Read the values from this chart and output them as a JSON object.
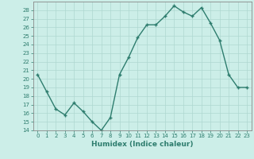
{
  "x": [
    0,
    1,
    2,
    3,
    4,
    5,
    6,
    7,
    8,
    9,
    10,
    11,
    12,
    13,
    14,
    15,
    16,
    17,
    18,
    19,
    20,
    21,
    22,
    23
  ],
  "y": [
    20.5,
    18.5,
    16.5,
    15.8,
    17.2,
    16.2,
    15.0,
    14.0,
    15.5,
    20.5,
    22.5,
    24.8,
    26.3,
    26.3,
    27.3,
    28.5,
    27.8,
    27.3,
    28.3,
    26.5,
    24.5,
    20.5,
    19.0,
    19.0
  ],
  "line_color": "#2e7d6e",
  "marker": "+",
  "markersize": 3.5,
  "linewidth": 1.0,
  "bg_color": "#cceee8",
  "grid_color": "#aed8d0",
  "xlabel": "Humidex (Indice chaleur)",
  "xlim": [
    -0.5,
    23.5
  ],
  "ylim": [
    14,
    29
  ],
  "yticks": [
    14,
    15,
    16,
    17,
    18,
    19,
    20,
    21,
    22,
    23,
    24,
    25,
    26,
    27,
    28
  ],
  "xticks": [
    0,
    1,
    2,
    3,
    4,
    5,
    6,
    7,
    8,
    9,
    10,
    11,
    12,
    13,
    14,
    15,
    16,
    17,
    18,
    19,
    20,
    21,
    22,
    23
  ],
  "tick_label_fontsize": 5.0,
  "xlabel_fontsize": 6.5,
  "tick_color": "#2e7d6e",
  "axis_color": "#2e7d6e",
  "spine_color": "#888888"
}
